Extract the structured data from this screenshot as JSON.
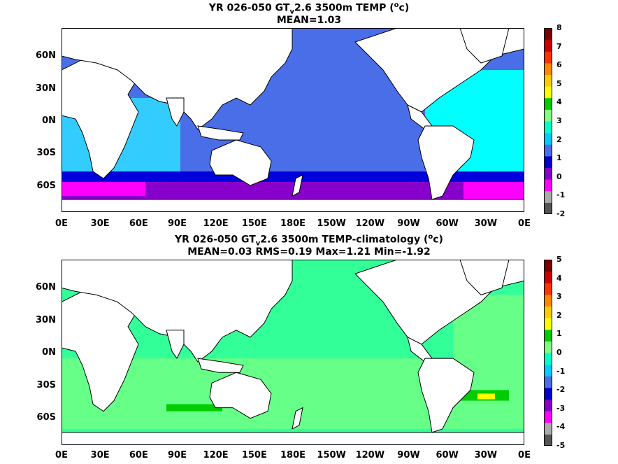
{
  "panels": [
    {
      "title_prefix": "YR 026-050 GT",
      "title_sub": "v",
      "title_suffix": "2.6 3500m TEMP (",
      "title_sup": "o",
      "title_end": "c)",
      "subtitle": "MEAN=1.03"
    },
    {
      "title_prefix": "YR 026-050 GT",
      "title_sub": "v",
      "title_suffix": "2.6 3500m TEMP-climatology (",
      "title_sup": "o",
      "title_end": "c)",
      "subtitle": "MEAN=0.03   RMS=0.19    Max=1.21   Min=-1.92"
    }
  ],
  "chart_data": [
    {
      "type": "heatmap",
      "title": "YR 026-050 GTv2.6 3500m TEMP (oc)",
      "subtitle": "MEAN=1.03",
      "x_ticks": [
        "0E",
        "30E",
        "60E",
        "90E",
        "120E",
        "150E",
        "180E",
        "150W",
        "120W",
        "90W",
        "60W",
        "30W",
        "0E"
      ],
      "y_ticks": [
        "60N",
        "30N",
        "0N",
        "30S",
        "60S"
      ],
      "colorbar_ticks": [
        "8",
        "7",
        "6",
        "5",
        "4",
        "3",
        "2",
        "1",
        "0",
        "-1",
        "-2"
      ],
      "colorbar_colors": [
        "#7a0000",
        "#cc0000",
        "#ff3300",
        "#ff8800",
        "#ffcc00",
        "#ffff00",
        "#00cc00",
        "#80ff80",
        "#00ffcc",
        "#00ccff",
        "#4a6ee8",
        "#0000cc",
        "#8800cc",
        "#ff00ff",
        "#aaaaaa",
        "#555555"
      ],
      "values": {
        "mean": 1.03
      }
    },
    {
      "type": "heatmap",
      "title": "YR 026-050 GTv2.6 3500m TEMP-climatology (oc)",
      "subtitle": "MEAN=0.03   RMS=0.19    Max=1.21   Min=-1.92",
      "x_ticks": [
        "0E",
        "30E",
        "60E",
        "90E",
        "120E",
        "150E",
        "180E",
        "150W",
        "120W",
        "90W",
        "60W",
        "30W",
        "0E"
      ],
      "y_ticks": [
        "60N",
        "30N",
        "0N",
        "30S",
        "60S"
      ],
      "colorbar_ticks": [
        "5",
        "4",
        "3",
        "2",
        "1",
        "0",
        "-1",
        "-2",
        "-3",
        "-4",
        "-5"
      ],
      "colorbar_colors": [
        "#7a0000",
        "#cc0000",
        "#ff3300",
        "#ff8800",
        "#ffcc00",
        "#ffff00",
        "#00cc00",
        "#80ff80",
        "#00ffcc",
        "#00ccff",
        "#4a6ee8",
        "#0000cc",
        "#8800cc",
        "#ff00ff",
        "#aaaaaa",
        "#555555"
      ],
      "values": {
        "mean": 0.03,
        "rms": 0.19,
        "max": 1.21,
        "min": -1.92
      }
    }
  ],
  "colors": {
    "deep_blue": "#4a6ee8",
    "cyan": "#00ffff",
    "light_cyan": "#33ccff",
    "navy": "#0000dd",
    "purple": "#8800cc",
    "magenta": "#ff00ff",
    "green_light": "#66ff88",
    "mint": "#33ff99",
    "green": "#00cc00",
    "yellow": "#ffff00",
    "land": "#ffffff",
    "coast": "#000000"
  }
}
